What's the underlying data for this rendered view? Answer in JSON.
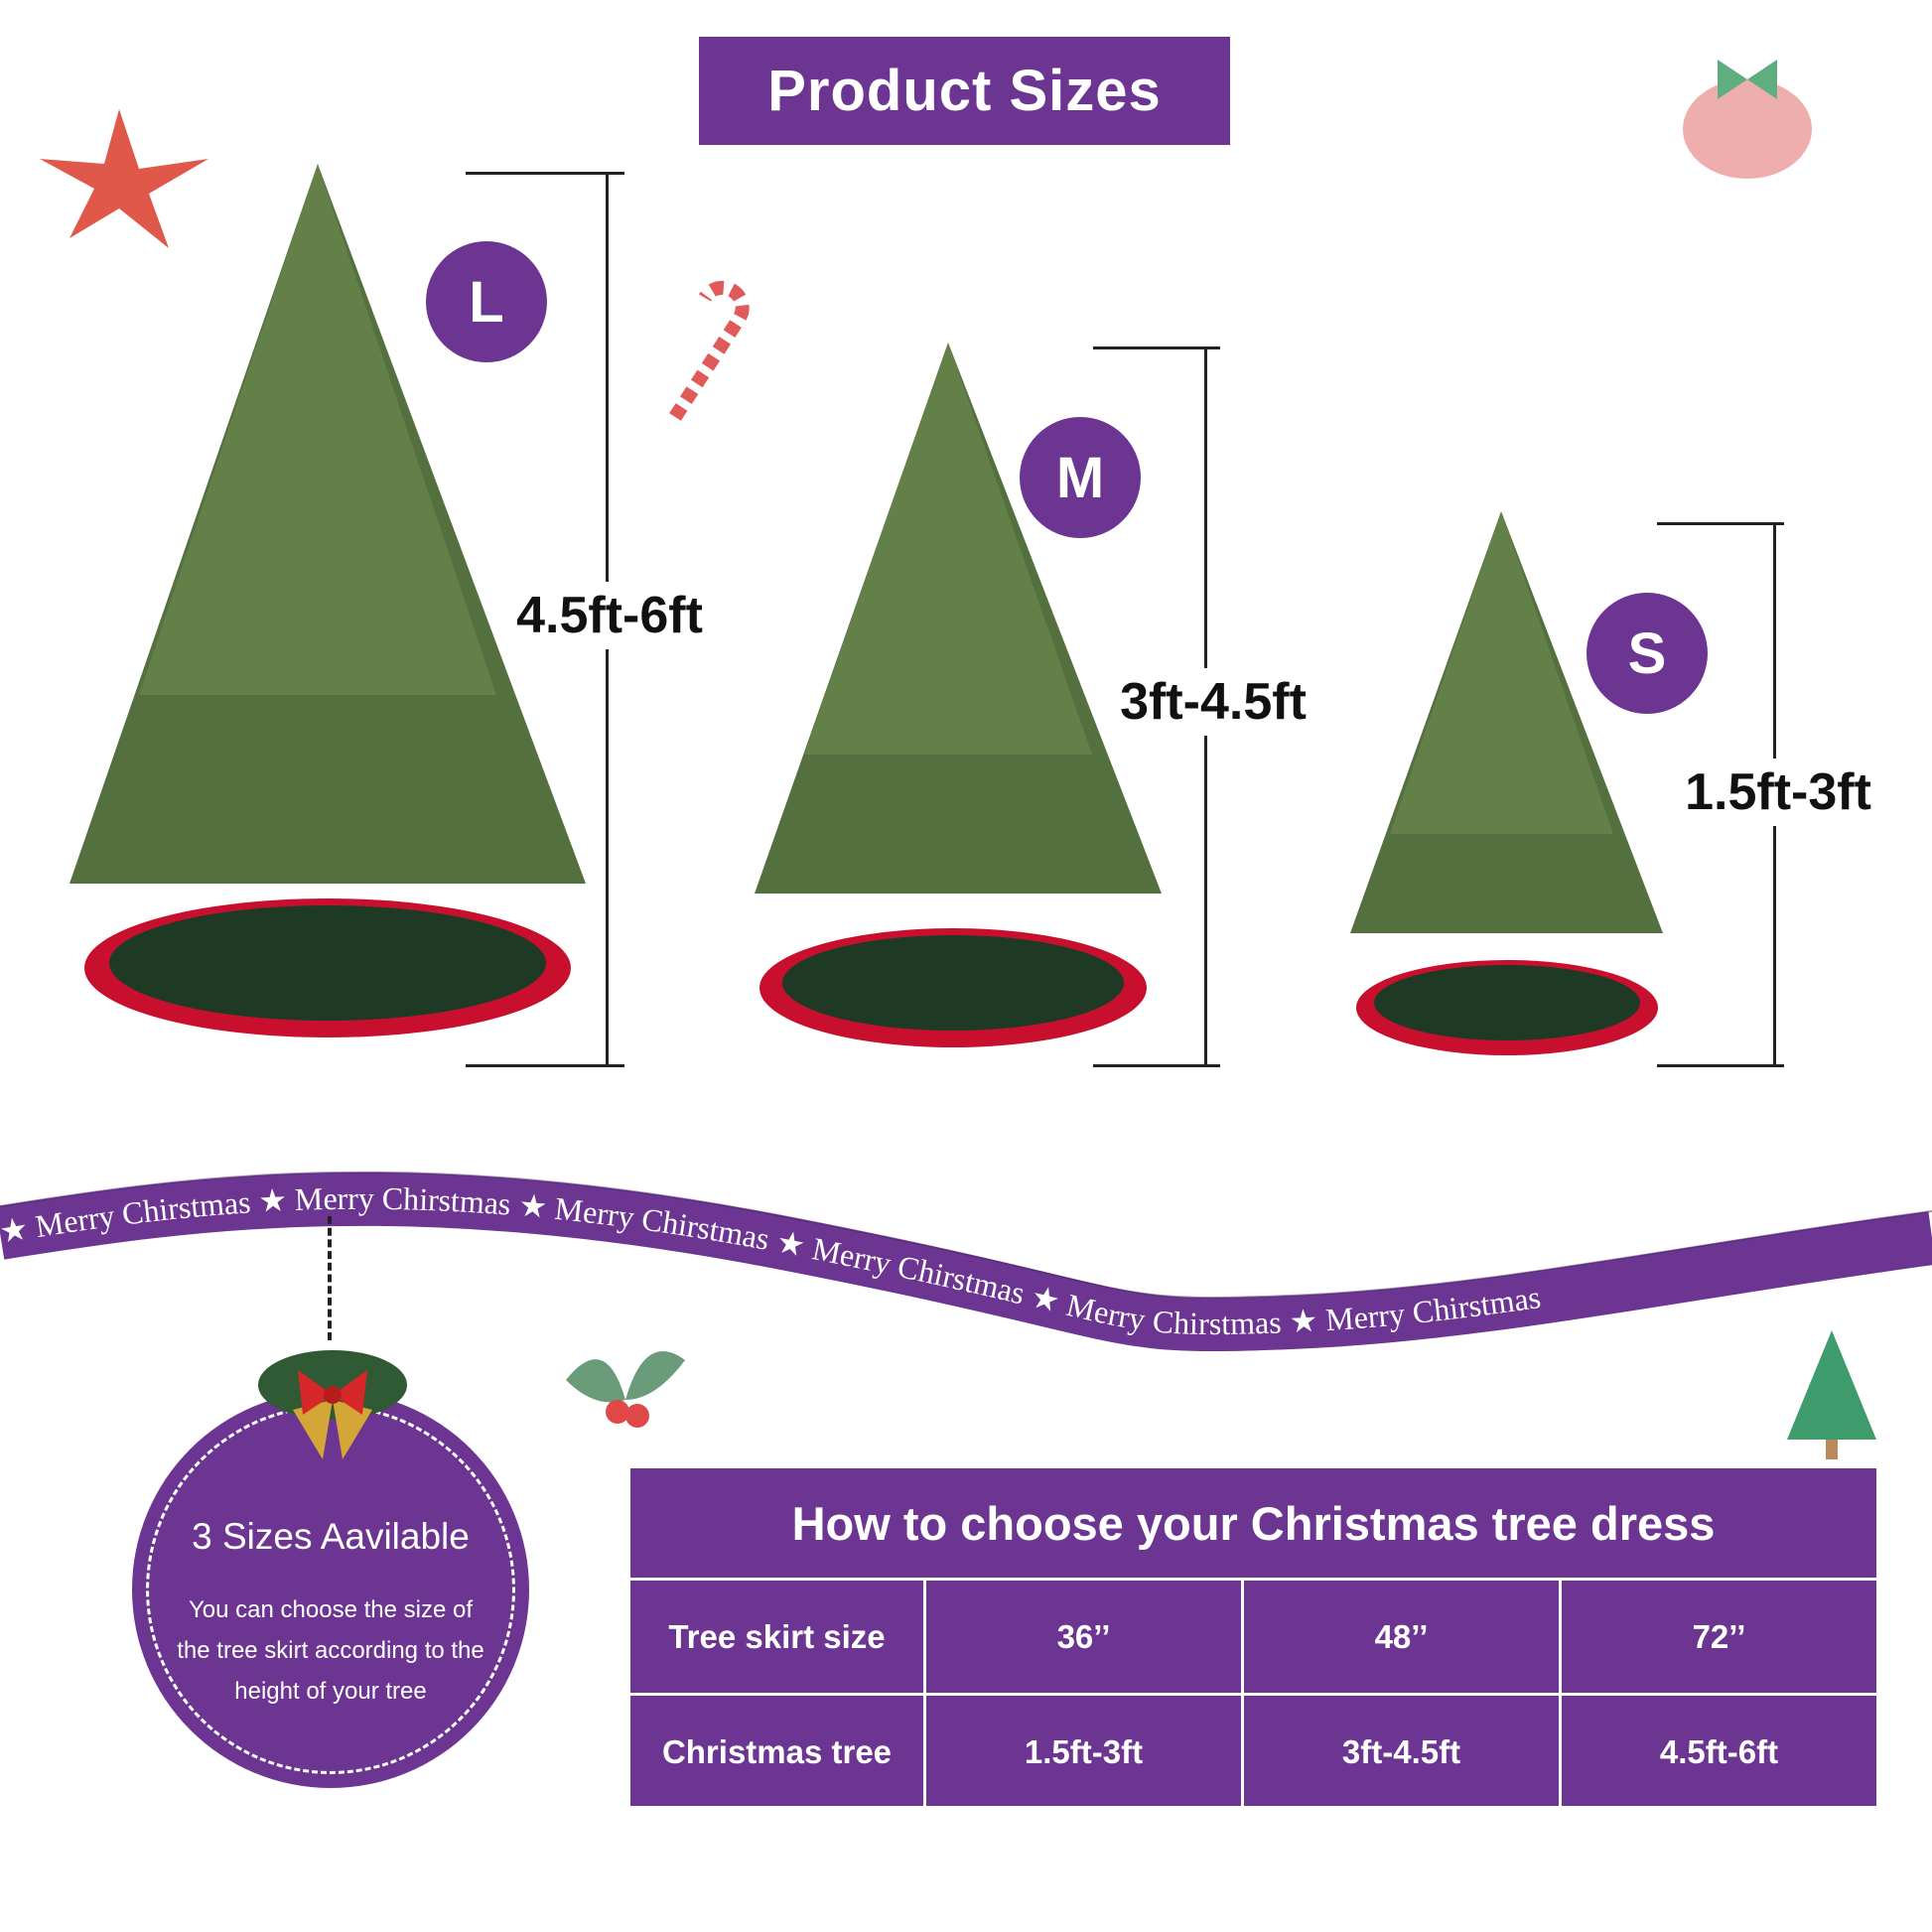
{
  "title": "Product Sizes",
  "sizes": [
    {
      "badge": "L",
      "range": "4.5ft-6ft"
    },
    {
      "badge": "M",
      "range": "3ft-4.5ft"
    },
    {
      "badge": "S",
      "range": "1.5ft-3ft"
    }
  ],
  "ribbon": {
    "text": "Merry Chirstmas",
    "star": "★"
  },
  "info": {
    "heading": "3 Sizes Aavilable",
    "body": "You can choose the size of the tree skirt according to the height of your tree"
  },
  "table": {
    "title": "How to choose your Christmas tree dress",
    "rows": [
      {
        "label": "Tree skirt size",
        "values": [
          "36’’",
          "48’’",
          "72’’"
        ]
      },
      {
        "label": "Christmas tree",
        "values": [
          "1.5ft-3ft",
          "3ft-4.5ft",
          "4.5ft-6ft"
        ]
      }
    ]
  },
  "colors": {
    "accent": "#6c3591",
    "tree": "#4f6b3a",
    "skirt": "#1f3a24",
    "skirt_edge": "#c8102e"
  }
}
